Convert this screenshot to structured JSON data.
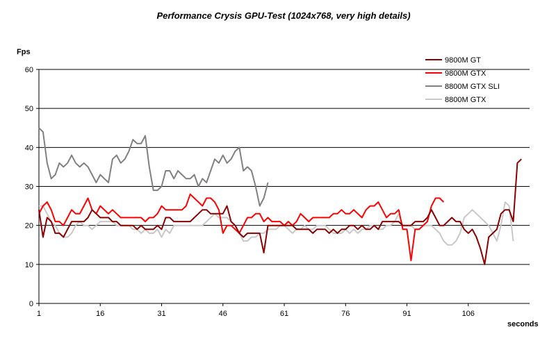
{
  "chart_data": {
    "type": "line",
    "title": "Performance Crysis GPU-Test (1024x768, very high details)",
    "ylabel": "Fps",
    "xlabel": "seconds",
    "ylim": [
      0,
      60
    ],
    "yticks": [
      0,
      10,
      20,
      30,
      40,
      50,
      60
    ],
    "xlim": [
      1,
      121
    ],
    "xticks": [
      1,
      16,
      31,
      46,
      61,
      76,
      91,
      106
    ],
    "grid": "horizontal",
    "legend_position": "top-right",
    "series": [
      {
        "name": "9800M GT",
        "color": "#8b0000",
        "values": [
          24,
          17,
          22,
          21,
          18,
          18,
          17,
          19,
          21,
          21,
          21,
          21,
          22,
          24,
          23,
          22,
          22,
          22,
          21,
          21,
          20,
          20,
          20,
          20,
          19,
          20,
          19,
          19,
          19,
          20,
          19,
          22,
          22,
          21,
          21,
          21,
          21,
          21,
          22,
          23,
          24,
          24,
          23,
          23,
          23,
          23,
          25,
          21,
          20,
          18,
          17,
          18,
          18,
          18,
          18,
          13,
          20,
          20,
          20,
          20,
          20,
          20,
          20,
          19,
          19,
          19,
          19,
          18,
          19,
          19,
          19,
          18,
          19,
          18,
          19,
          19,
          20,
          20,
          19,
          20,
          19,
          19,
          20,
          19,
          21,
          21,
          21,
          21,
          21,
          20,
          20,
          20,
          21,
          21,
          21,
          22,
          24,
          22,
          20,
          20,
          21,
          22,
          21,
          21,
          19,
          18,
          19,
          17,
          14,
          10,
          17,
          18,
          19,
          23,
          24,
          24,
          21,
          36,
          37
        ]
      },
      {
        "name": "9800M GTX",
        "color": "#ff0000",
        "values": [
          23,
          25,
          26,
          24,
          21,
          21,
          20,
          22,
          24,
          23,
          23,
          25,
          27,
          24,
          23,
          25,
          24,
          23,
          24,
          23,
          22,
          22,
          22,
          22,
          22,
          22,
          21,
          22,
          22,
          23,
          25,
          24,
          24,
          24,
          24,
          24,
          25,
          28,
          27,
          26,
          25,
          27,
          27,
          26,
          24,
          18,
          20,
          20,
          19,
          18,
          20,
          22,
          22,
          23,
          23,
          21,
          22,
          21,
          21,
          21,
          20,
          21,
          20,
          21,
          23,
          22,
          21,
          22,
          22,
          22,
          22,
          22,
          23,
          23,
          24,
          23,
          23,
          24,
          23,
          22,
          24,
          25,
          25,
          26,
          24,
          22,
          23,
          23,
          24,
          19,
          19,
          11,
          19,
          19,
          20,
          21,
          25,
          27,
          27,
          26
        ]
      },
      {
        "name": "8800M GTX SLI",
        "color": "#808080",
        "values": [
          45,
          44,
          36,
          32,
          33,
          36,
          35,
          36,
          38,
          36,
          35,
          36,
          35,
          33,
          31,
          33,
          32,
          31,
          37,
          38,
          36,
          37,
          39,
          42,
          41,
          41,
          43,
          35,
          29,
          29,
          30,
          34,
          34,
          32,
          34,
          33,
          32,
          32,
          33,
          30,
          32,
          31,
          34,
          37,
          36,
          38,
          36,
          37,
          39,
          40,
          34,
          35,
          34,
          30,
          25,
          27,
          31
        ]
      },
      {
        "name": "8800M GTX",
        "color": "#c8c8c8",
        "values": [
          25,
          25,
          23,
          21,
          20,
          18,
          17,
          17,
          18,
          20,
          21,
          20,
          20,
          19,
          20,
          21,
          21,
          21,
          21,
          20,
          20,
          20,
          20,
          19,
          19,
          18,
          19,
          18,
          18,
          19,
          17,
          19,
          18,
          20,
          20,
          20,
          20,
          20,
          20,
          20,
          20,
          21,
          22,
          23,
          22,
          22,
          22,
          21,
          20,
          18,
          16,
          16,
          17,
          17,
          18,
          18,
          19,
          19,
          19,
          20,
          20,
          19,
          18,
          19,
          19,
          20,
          19,
          19,
          20,
          20,
          20,
          19,
          18,
          18,
          18,
          19,
          18,
          19,
          18,
          19,
          19,
          20,
          20,
          19,
          19,
          20,
          20,
          21,
          23,
          20,
          20,
          20,
          19,
          19,
          20,
          20,
          20,
          19,
          18,
          16,
          15,
          15,
          16,
          18,
          22,
          23,
          24,
          23,
          22,
          21,
          20,
          18,
          16,
          20,
          26,
          25,
          16
        ]
      }
    ]
  }
}
